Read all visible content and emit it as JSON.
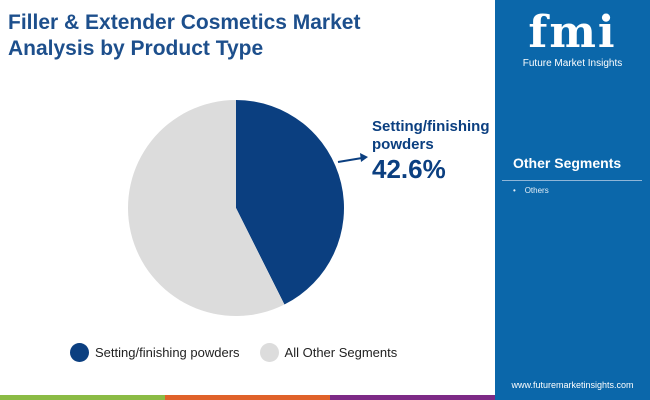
{
  "chart_data": {
    "type": "pie",
    "title": "Filler & Extender Cosmetics Market Analysis by Product Type",
    "slices": [
      {
        "name": "Setting/finishing powders",
        "value": 42.6,
        "color": "#0b3f80"
      },
      {
        "name": "All Other Segments",
        "value": 57.4,
        "color": "#dcdcdc"
      }
    ],
    "annotation": {
      "label": "Setting/finishing powders",
      "value": "42.6%"
    },
    "legend": "bottom"
  },
  "sidebar": {
    "logo_text": "fmi",
    "brand": "Future Market Insights",
    "segments_title": "Other Segments",
    "segments": [
      "Others"
    ],
    "url": "www.futuremarketinsights.com"
  },
  "footer_colors": [
    "#8bbb45",
    "#e0622a",
    "#7d2a86"
  ]
}
